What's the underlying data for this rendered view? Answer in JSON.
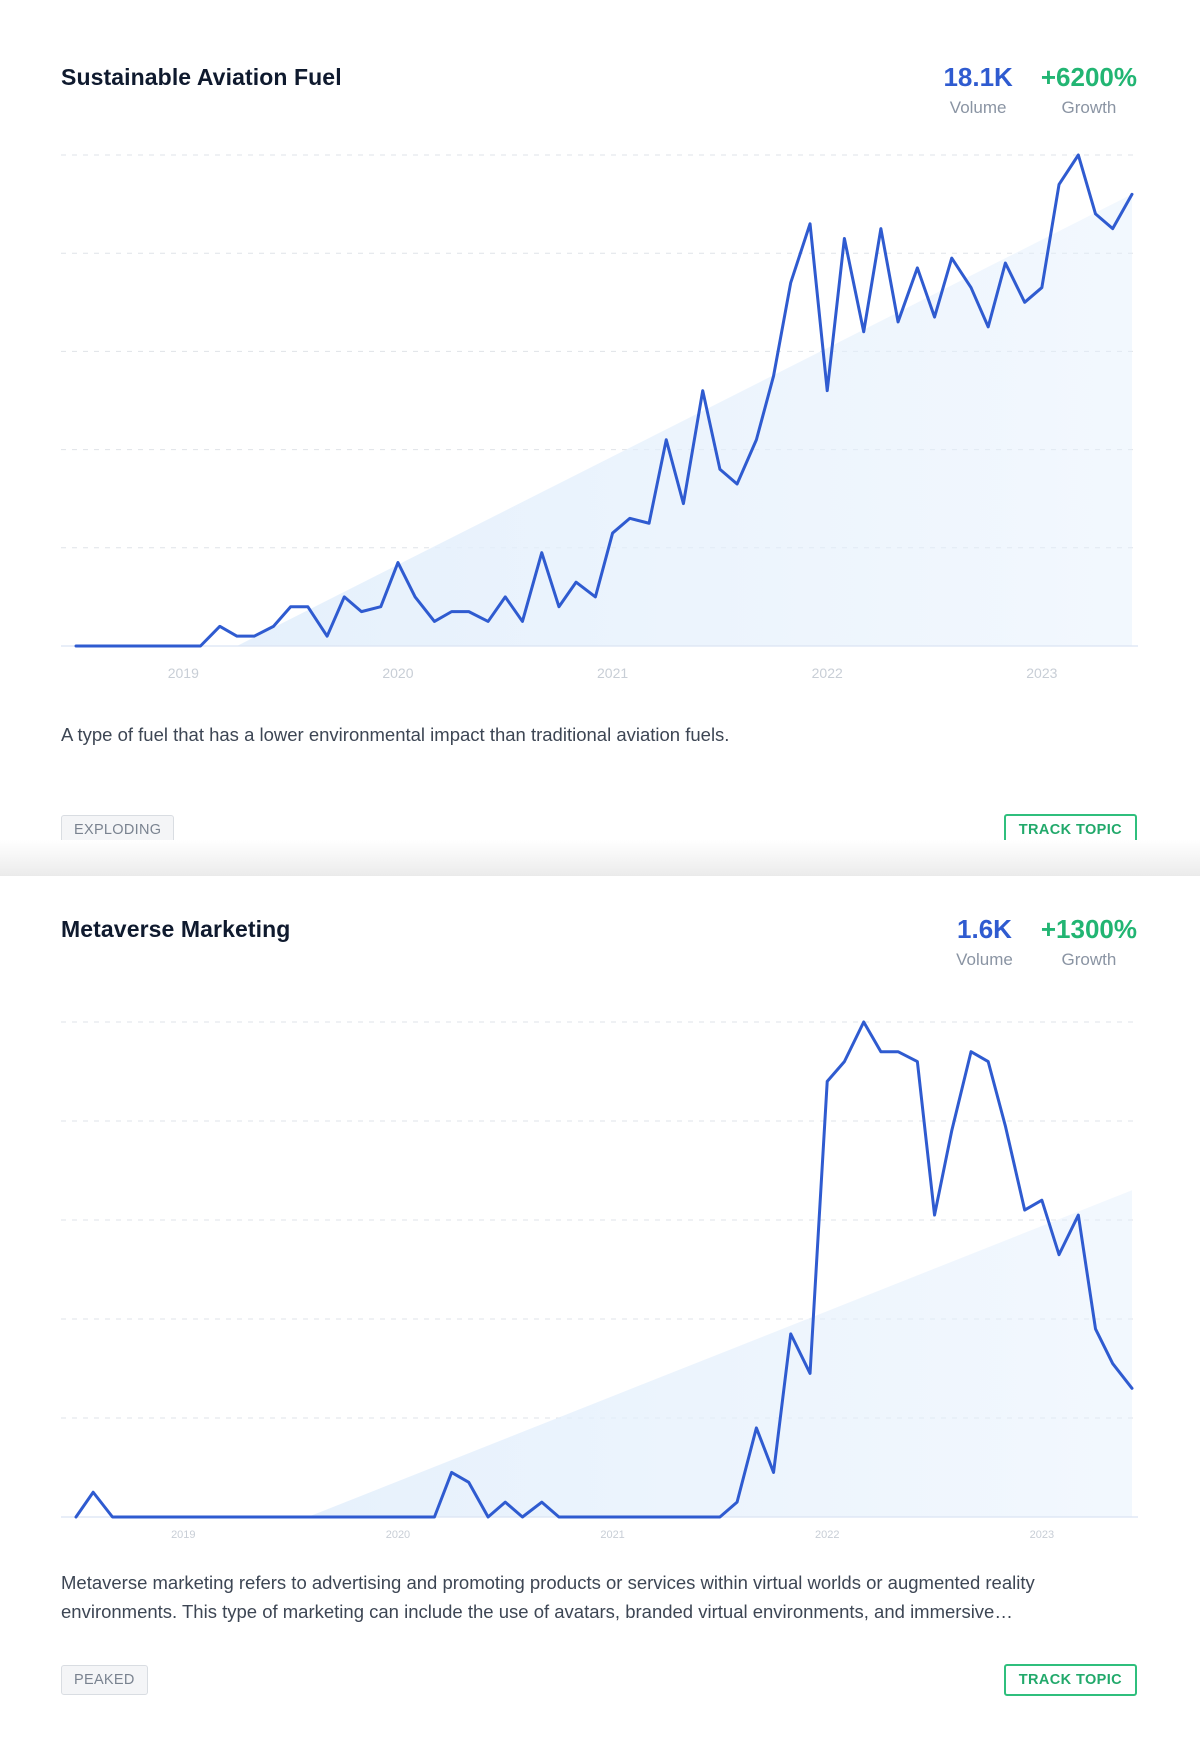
{
  "topics": [
    {
      "title": "Sustainable Aviation Fuel",
      "volume": "18.1K",
      "volume_label": "Volume",
      "growth": "+6200%",
      "growth_label": "Growth",
      "description": "A type of fuel that has a lower environmental impact than traditional aviation fuels.",
      "status": "EXPLODING",
      "action_label": "TRACK TOPIC"
    },
    {
      "title": "Metaverse Marketing",
      "volume": "1.6K",
      "volume_label": "Volume",
      "growth": "+1300%",
      "growth_label": "Growth",
      "description": "Metaverse marketing refers to advertising and promoting products or services within virtual worlds or augmented reality environments. This type of marketing can include the use of avatars, branded virtual environments, and immersive…",
      "status": "PEAKED",
      "action_label": "TRACK TOPIC"
    }
  ],
  "chart_data": [
    {
      "type": "line",
      "title": "",
      "x_ticks": [
        "2019",
        "2020",
        "2021",
        "2022",
        "2023"
      ],
      "x_tick_positions": [
        2019.0,
        2020.0,
        2021.0,
        2022.0,
        2023.0
      ],
      "xlim": [
        2018.5,
        2023.42
      ],
      "ylim": [
        0,
        100
      ],
      "grid": true,
      "colors": {
        "line": "#2f5bd0",
        "trend_fill": "#e3effc"
      },
      "trend": {
        "x": [
          2018.5,
          2019.25,
          2023.42
        ],
        "y": [
          0,
          0,
          92
        ]
      },
      "x": [
        2018.5,
        2018.58,
        2018.67,
        2018.75,
        2018.83,
        2018.92,
        2019.0,
        2019.08,
        2019.17,
        2019.25,
        2019.33,
        2019.42,
        2019.5,
        2019.58,
        2019.67,
        2019.75,
        2019.83,
        2019.92,
        2020.0,
        2020.08,
        2020.17,
        2020.25,
        2020.33,
        2020.42,
        2020.5,
        2020.58,
        2020.67,
        2020.75,
        2020.83,
        2020.92,
        2021.0,
        2021.08,
        2021.17,
        2021.25,
        2021.33,
        2021.42,
        2021.5,
        2021.58,
        2021.67,
        2021.75,
        2021.83,
        2021.92,
        2022.0,
        2022.08,
        2022.17,
        2022.25,
        2022.33,
        2022.42,
        2022.5,
        2022.58,
        2022.67,
        2022.75,
        2022.83,
        2022.92,
        2023.0,
        2023.08,
        2023.17,
        2023.25,
        2023.33,
        2023.42
      ],
      "values": [
        0,
        0,
        0,
        0,
        0,
        0,
        0,
        0,
        4,
        2,
        2,
        4,
        8,
        8,
        2,
        10,
        7,
        8,
        17,
        10,
        5,
        7,
        7,
        5,
        10,
        5,
        19,
        8,
        13,
        10,
        23,
        26,
        25,
        42,
        29,
        52,
        36,
        33,
        42,
        55,
        74,
        86,
        52,
        83,
        64,
        85,
        66,
        77,
        67,
        79,
        73,
        65,
        78,
        70,
        73,
        94,
        100,
        88,
        85,
        92
      ]
    },
    {
      "type": "line",
      "title": "",
      "x_ticks": [
        "2019",
        "2020",
        "2021",
        "2022",
        "2023"
      ],
      "x_tick_positions": [
        2019.0,
        2020.0,
        2021.0,
        2022.0,
        2023.0
      ],
      "xlim": [
        2018.5,
        2023.42
      ],
      "ylim": [
        0,
        100
      ],
      "grid": true,
      "colors": {
        "line": "#2f5bd0",
        "trend_fill": "#e3effc"
      },
      "trend": {
        "x": [
          2018.5,
          2019.58,
          2023.42
        ],
        "y": [
          0,
          0,
          66
        ]
      },
      "x": [
        2018.5,
        2018.58,
        2018.67,
        2018.75,
        2018.83,
        2018.92,
        2019.0,
        2019.08,
        2019.17,
        2019.25,
        2019.33,
        2019.42,
        2019.5,
        2019.58,
        2019.67,
        2019.75,
        2019.83,
        2019.92,
        2020.0,
        2020.08,
        2020.17,
        2020.25,
        2020.33,
        2020.42,
        2020.5,
        2020.58,
        2020.67,
        2020.75,
        2020.83,
        2020.92,
        2021.0,
        2021.08,
        2021.17,
        2021.25,
        2021.33,
        2021.42,
        2021.5,
        2021.58,
        2021.67,
        2021.75,
        2021.83,
        2021.92,
        2022.0,
        2022.08,
        2022.17,
        2022.25,
        2022.33,
        2022.42,
        2022.5,
        2022.58,
        2022.67,
        2022.75,
        2022.83,
        2022.92,
        2023.0,
        2023.08,
        2023.17,
        2023.25,
        2023.33,
        2023.42
      ],
      "values": [
        0,
        5,
        0,
        0,
        0,
        0,
        0,
        0,
        0,
        0,
        0,
        0,
        0,
        0,
        0,
        0,
        0,
        0,
        0,
        0,
        0,
        9,
        7,
        0,
        3,
        0,
        3,
        0,
        0,
        0,
        0,
        0,
        0,
        0,
        0,
        0,
        0,
        3,
        18,
        9,
        37,
        29,
        88,
        92,
        100,
        94,
        94,
        92,
        61,
        78,
        94,
        92,
        79,
        62,
        64,
        53,
        61,
        38,
        31,
        26
      ]
    }
  ]
}
